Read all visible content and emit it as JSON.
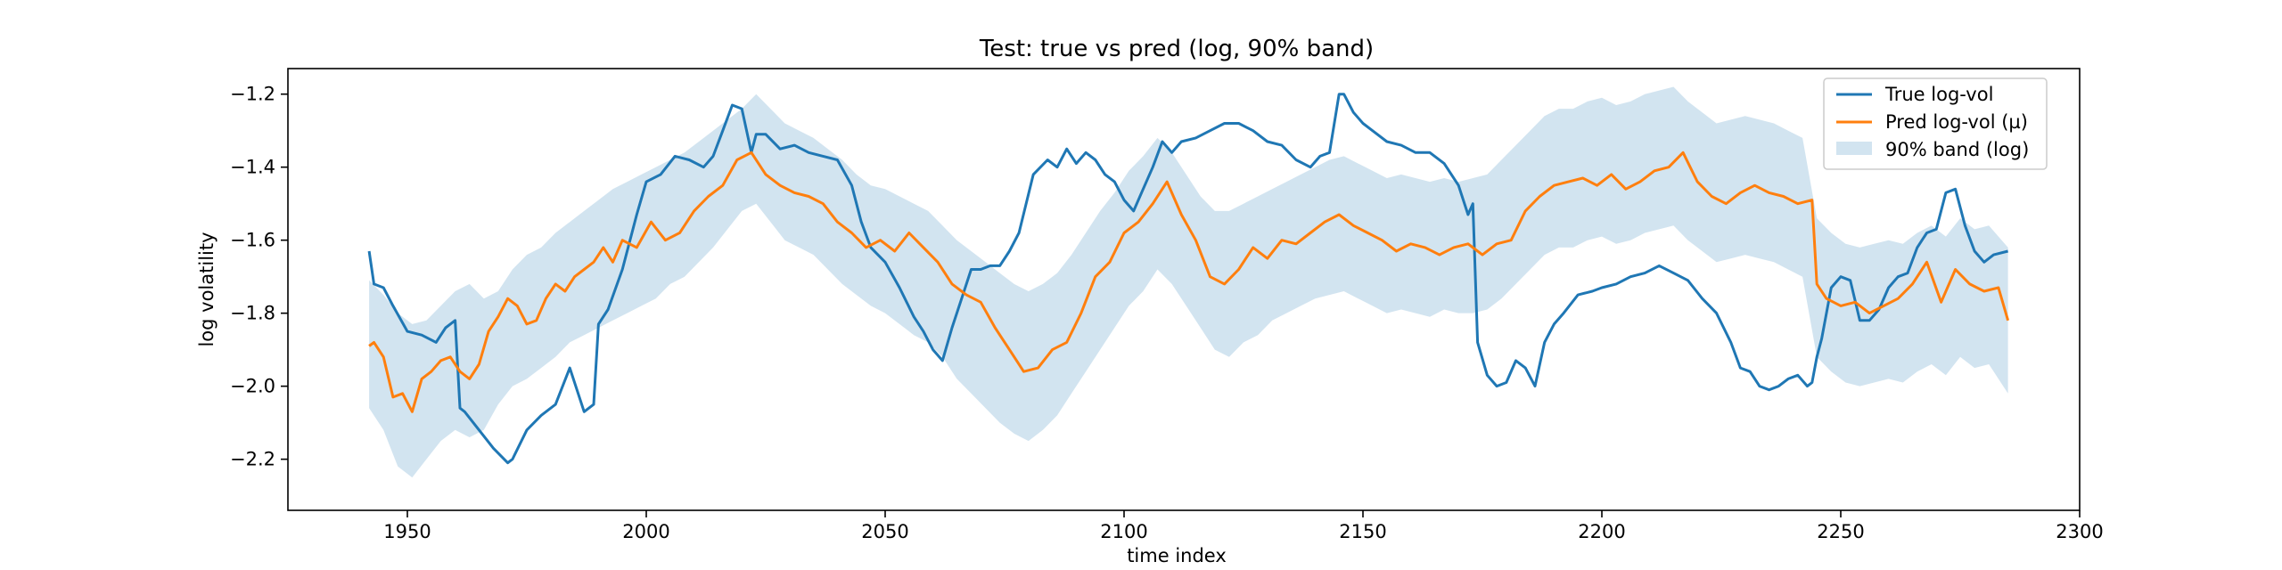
{
  "chart_data": {
    "type": "line",
    "title": "Test: true vs pred (log, 90% band)",
    "xlabel": "time index",
    "ylabel": "log volatility",
    "xlim": [
      1925,
      2300
    ],
    "ylim": [
      -2.34,
      -1.13
    ],
    "xticks": [
      1950,
      2000,
      2050,
      2100,
      2150,
      2200,
      2250,
      2300
    ],
    "yticks": [
      -2.2,
      -2.0,
      -1.8,
      -1.6,
      -1.4,
      -1.2
    ],
    "ytick_labels": [
      "−2.2",
      "−2.0",
      "−1.8",
      "−1.6",
      "−1.4",
      "−1.2"
    ],
    "grid": false,
    "legend_position": "top-right",
    "colors": {
      "true": "#1f77b4",
      "pred": "#ff7f0e",
      "band": "#1f77b4"
    },
    "series": [
      {
        "name": "True log-vol",
        "x": [
          1942,
          1943,
          1945,
          1947,
          1950,
          1953,
          1956,
          1958,
          1960,
          1961,
          1962,
          1965,
          1968,
          1971,
          1972,
          1975,
          1978,
          1981,
          1984,
          1987,
          1989,
          1990,
          1992,
          1995,
          1998,
          2000,
          2003,
          2006,
          2009,
          2012,
          2014,
          2016,
          2018,
          2020,
          2022,
          2023,
          2025,
          2028,
          2031,
          2034,
          2037,
          2040,
          2043,
          2045,
          2047,
          2050,
          2053,
          2056,
          2058,
          2060,
          2062,
          2064,
          2066,
          2068,
          2070,
          2072,
          2074,
          2076,
          2078,
          2081,
          2084,
          2086,
          2088,
          2090,
          2092,
          2094,
          2096,
          2098,
          2100,
          2102,
          2104,
          2106,
          2108,
          2110,
          2112,
          2115,
          2118,
          2121,
          2124,
          2127,
          2130,
          2133,
          2136,
          2139,
          2141,
          2143,
          2145,
          2146,
          2148,
          2150,
          2152,
          2155,
          2158,
          2161,
          2164,
          2167,
          2170,
          2172,
          2173,
          2174,
          2176,
          2178,
          2180,
          2182,
          2184,
          2186,
          2188,
          2190,
          2192,
          2195,
          2198,
          2200,
          2203,
          2206,
          2209,
          2212,
          2215,
          2218,
          2221,
          2224,
          2227,
          2229,
          2231,
          2233,
          2235,
          2237,
          2239,
          2241,
          2243,
          2244,
          2245,
          2246,
          2248,
          2250,
          2252,
          2254,
          2256,
          2258,
          2260,
          2262,
          2264,
          2266,
          2268,
          2270,
          2272,
          2274,
          2276,
          2278,
          2280,
          2282,
          2285
        ],
        "values": [
          -1.63,
          -1.72,
          -1.73,
          -1.78,
          -1.85,
          -1.86,
          -1.88,
          -1.84,
          -1.82,
          -2.06,
          -2.07,
          -2.12,
          -2.17,
          -2.21,
          -2.2,
          -2.12,
          -2.08,
          -2.05,
          -1.95,
          -2.07,
          -2.05,
          -1.83,
          -1.79,
          -1.68,
          -1.53,
          -1.44,
          -1.42,
          -1.37,
          -1.38,
          -1.4,
          -1.37,
          -1.3,
          -1.23,
          -1.24,
          -1.36,
          -1.31,
          -1.31,
          -1.35,
          -1.34,
          -1.36,
          -1.37,
          -1.38,
          -1.45,
          -1.55,
          -1.62,
          -1.66,
          -1.73,
          -1.81,
          -1.85,
          -1.9,
          -1.93,
          -1.84,
          -1.76,
          -1.68,
          -1.68,
          -1.67,
          -1.67,
          -1.63,
          -1.58,
          -1.42,
          -1.38,
          -1.4,
          -1.35,
          -1.39,
          -1.36,
          -1.38,
          -1.42,
          -1.44,
          -1.49,
          -1.52,
          -1.46,
          -1.4,
          -1.33,
          -1.36,
          -1.33,
          -1.32,
          -1.3,
          -1.28,
          -1.28,
          -1.3,
          -1.33,
          -1.34,
          -1.38,
          -1.4,
          -1.37,
          -1.36,
          -1.2,
          -1.2,
          -1.25,
          -1.28,
          -1.3,
          -1.33,
          -1.34,
          -1.36,
          -1.36,
          -1.39,
          -1.45,
          -1.53,
          -1.5,
          -1.88,
          -1.97,
          -2.0,
          -1.99,
          -1.93,
          -1.95,
          -2.0,
          -1.88,
          -1.83,
          -1.8,
          -1.75,
          -1.74,
          -1.73,
          -1.72,
          -1.7,
          -1.69,
          -1.67,
          -1.69,
          -1.71,
          -1.76,
          -1.8,
          -1.88,
          -1.95,
          -1.96,
          -2.0,
          -2.01,
          -2.0,
          -1.98,
          -1.97,
          -2.0,
          -1.99,
          -1.92,
          -1.87,
          -1.73,
          -1.7,
          -1.71,
          -1.82,
          -1.82,
          -1.79,
          -1.73,
          -1.7,
          -1.69,
          -1.62,
          -1.58,
          -1.57,
          -1.47,
          -1.46,
          -1.56,
          -1.63,
          -1.66,
          -1.64,
          -1.63
        ]
      },
      {
        "name": "Pred log-vol (µ)",
        "x": [
          1942,
          1943,
          1945,
          1947,
          1949,
          1951,
          1953,
          1955,
          1957,
          1959,
          1961,
          1963,
          1965,
          1967,
          1969,
          1971,
          1973,
          1975,
          1977,
          1979,
          1981,
          1983,
          1985,
          1987,
          1989,
          1991,
          1993,
          1995,
          1998,
          2001,
          2004,
          2007,
          2010,
          2013,
          2016,
          2019,
          2022,
          2025,
          2028,
          2031,
          2034,
          2037,
          2040,
          2043,
          2046,
          2049,
          2052,
          2055,
          2058,
          2061,
          2064,
          2067,
          2070,
          2073,
          2076,
          2079,
          2082,
          2085,
          2088,
          2091,
          2094,
          2097,
          2100,
          2103,
          2106,
          2109,
          2112,
          2115,
          2118,
          2121,
          2124,
          2127,
          2130,
          2133,
          2136,
          2139,
          2142,
          2145,
          2148,
          2151,
          2154,
          2157,
          2160,
          2163,
          2166,
          2169,
          2172,
          2175,
          2178,
          2181,
          2184,
          2187,
          2190,
          2193,
          2196,
          2199,
          2202,
          2205,
          2208,
          2211,
          2214,
          2217,
          2220,
          2223,
          2226,
          2229,
          2232,
          2235,
          2238,
          2241,
          2244,
          2245,
          2247,
          2250,
          2253,
          2256,
          2259,
          2262,
          2265,
          2268,
          2271,
          2274,
          2277,
          2280,
          2283,
          2285
        ],
        "values": [
          -1.89,
          -1.88,
          -1.92,
          -2.03,
          -2.02,
          -2.07,
          -1.98,
          -1.96,
          -1.93,
          -1.92,
          -1.96,
          -1.98,
          -1.94,
          -1.85,
          -1.81,
          -1.76,
          -1.78,
          -1.83,
          -1.82,
          -1.76,
          -1.72,
          -1.74,
          -1.7,
          -1.68,
          -1.66,
          -1.62,
          -1.66,
          -1.6,
          -1.62,
          -1.55,
          -1.6,
          -1.58,
          -1.52,
          -1.48,
          -1.45,
          -1.38,
          -1.36,
          -1.42,
          -1.45,
          -1.47,
          -1.48,
          -1.5,
          -1.55,
          -1.58,
          -1.62,
          -1.6,
          -1.63,
          -1.58,
          -1.62,
          -1.66,
          -1.72,
          -1.75,
          -1.77,
          -1.84,
          -1.9,
          -1.96,
          -1.95,
          -1.9,
          -1.88,
          -1.8,
          -1.7,
          -1.66,
          -1.58,
          -1.55,
          -1.5,
          -1.44,
          -1.53,
          -1.6,
          -1.7,
          -1.72,
          -1.68,
          -1.62,
          -1.65,
          -1.6,
          -1.61,
          -1.58,
          -1.55,
          -1.53,
          -1.56,
          -1.58,
          -1.6,
          -1.63,
          -1.61,
          -1.62,
          -1.64,
          -1.62,
          -1.61,
          -1.64,
          -1.61,
          -1.6,
          -1.52,
          -1.48,
          -1.45,
          -1.44,
          -1.43,
          -1.45,
          -1.42,
          -1.46,
          -1.44,
          -1.41,
          -1.4,
          -1.36,
          -1.44,
          -1.48,
          -1.5,
          -1.47,
          -1.45,
          -1.47,
          -1.48,
          -1.5,
          -1.49,
          -1.72,
          -1.76,
          -1.78,
          -1.77,
          -1.8,
          -1.78,
          -1.76,
          -1.72,
          -1.66,
          -1.77,
          -1.68,
          -1.72,
          -1.74,
          -1.73,
          -1.82
        ]
      }
    ],
    "band": {
      "name": "90% band (log)",
      "x": [
        1942,
        1945,
        1948,
        1951,
        1954,
        1957,
        1960,
        1963,
        1966,
        1969,
        1972,
        1975,
        1978,
        1981,
        1984,
        1987,
        1990,
        1993,
        1996,
        1999,
        2002,
        2005,
        2008,
        2011,
        2014,
        2017,
        2020,
        2023,
        2026,
        2029,
        2032,
        2035,
        2038,
        2041,
        2044,
        2047,
        2050,
        2053,
        2056,
        2059,
        2062,
        2065,
        2068,
        2071,
        2074,
        2077,
        2080,
        2083,
        2086,
        2089,
        2092,
        2095,
        2098,
        2101,
        2104,
        2107,
        2110,
        2113,
        2116,
        2119,
        2122,
        2125,
        2128,
        2131,
        2134,
        2137,
        2140,
        2143,
        2146,
        2149,
        2152,
        2155,
        2158,
        2161,
        2164,
        2167,
        2170,
        2173,
        2176,
        2179,
        2182,
        2185,
        2188,
        2191,
        2194,
        2197,
        2200,
        2203,
        2206,
        2209,
        2212,
        2215,
        2218,
        2221,
        2224,
        2227,
        2230,
        2233,
        2236,
        2239,
        2242,
        2245,
        2248,
        2251,
        2254,
        2257,
        2260,
        2263,
        2266,
        2269,
        2272,
        2275,
        2278,
        2281,
        2285
      ],
      "lower": [
        -2.06,
        -2.12,
        -2.22,
        -2.25,
        -2.2,
        -2.15,
        -2.12,
        -2.14,
        -2.12,
        -2.05,
        -2.0,
        -1.98,
        -1.95,
        -1.92,
        -1.88,
        -1.86,
        -1.84,
        -1.82,
        -1.8,
        -1.78,
        -1.76,
        -1.72,
        -1.7,
        -1.66,
        -1.62,
        -1.57,
        -1.52,
        -1.5,
        -1.55,
        -1.6,
        -1.62,
        -1.64,
        -1.68,
        -1.72,
        -1.75,
        -1.78,
        -1.8,
        -1.83,
        -1.86,
        -1.88,
        -1.92,
        -1.98,
        -2.02,
        -2.06,
        -2.1,
        -2.13,
        -2.15,
        -2.12,
        -2.08,
        -2.02,
        -1.96,
        -1.9,
        -1.84,
        -1.78,
        -1.74,
        -1.68,
        -1.72,
        -1.78,
        -1.84,
        -1.9,
        -1.92,
        -1.88,
        -1.86,
        -1.82,
        -1.8,
        -1.78,
        -1.76,
        -1.75,
        -1.74,
        -1.76,
        -1.78,
        -1.8,
        -1.79,
        -1.8,
        -1.81,
        -1.79,
        -1.8,
        -1.8,
        -1.79,
        -1.76,
        -1.72,
        -1.68,
        -1.64,
        -1.62,
        -1.62,
        -1.6,
        -1.59,
        -1.61,
        -1.6,
        -1.58,
        -1.57,
        -1.56,
        -1.6,
        -1.63,
        -1.66,
        -1.65,
        -1.64,
        -1.65,
        -1.66,
        -1.68,
        -1.7,
        -1.92,
        -1.96,
        -1.99,
        -2.0,
        -1.99,
        -1.98,
        -1.99,
        -1.96,
        -1.94,
        -1.97,
        -1.92,
        -1.95,
        -1.94,
        -2.02
      ],
      "upper": [
        -1.71,
        -1.75,
        -1.8,
        -1.83,
        -1.82,
        -1.78,
        -1.74,
        -1.72,
        -1.76,
        -1.74,
        -1.68,
        -1.64,
        -1.62,
        -1.58,
        -1.55,
        -1.52,
        -1.49,
        -1.46,
        -1.44,
        -1.42,
        -1.4,
        -1.38,
        -1.36,
        -1.33,
        -1.3,
        -1.27,
        -1.24,
        -1.2,
        -1.24,
        -1.28,
        -1.3,
        -1.32,
        -1.35,
        -1.38,
        -1.42,
        -1.45,
        -1.46,
        -1.48,
        -1.5,
        -1.52,
        -1.56,
        -1.6,
        -1.63,
        -1.66,
        -1.69,
        -1.72,
        -1.74,
        -1.72,
        -1.69,
        -1.64,
        -1.58,
        -1.52,
        -1.47,
        -1.41,
        -1.37,
        -1.32,
        -1.36,
        -1.42,
        -1.48,
        -1.52,
        -1.52,
        -1.5,
        -1.48,
        -1.46,
        -1.44,
        -1.42,
        -1.4,
        -1.38,
        -1.37,
        -1.39,
        -1.41,
        -1.43,
        -1.42,
        -1.43,
        -1.44,
        -1.43,
        -1.44,
        -1.43,
        -1.42,
        -1.38,
        -1.34,
        -1.3,
        -1.26,
        -1.24,
        -1.24,
        -1.22,
        -1.21,
        -1.23,
        -1.22,
        -1.2,
        -1.19,
        -1.18,
        -1.22,
        -1.25,
        -1.28,
        -1.27,
        -1.26,
        -1.27,
        -1.28,
        -1.3,
        -1.32,
        -1.54,
        -1.58,
        -1.61,
        -1.62,
        -1.61,
        -1.6,
        -1.61,
        -1.58,
        -1.56,
        -1.59,
        -1.54,
        -1.57,
        -1.56,
        -1.62
      ]
    }
  }
}
